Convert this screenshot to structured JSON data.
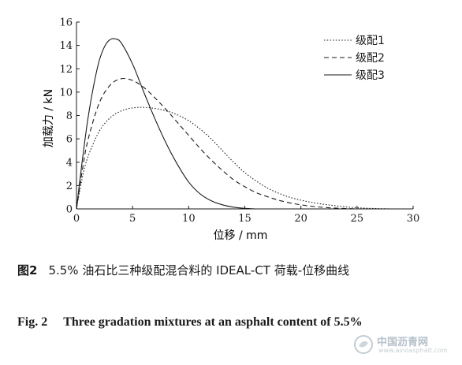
{
  "chart_data": {
    "type": "line",
    "xlabel": "位移 / mm",
    "ylabel": "加载力 / kN",
    "xlim": [
      0,
      30
    ],
    "ylim": [
      0,
      16
    ],
    "xticks": [
      0,
      5,
      10,
      15,
      20,
      25,
      30
    ],
    "yticks": [
      0,
      2,
      4,
      6,
      8,
      10,
      12,
      14,
      16
    ],
    "legend_position": "top-right",
    "grid": false,
    "series": [
      {
        "name": "级配1",
        "style": "dotted",
        "x": [
          0,
          0.5,
          1,
          2,
          3,
          4,
          5,
          6,
          7,
          8,
          9,
          10,
          11,
          12,
          13,
          14,
          15,
          16,
          17,
          18,
          19,
          20,
          21,
          22,
          23,
          24,
          25,
          26,
          27,
          28
        ],
        "y": [
          0,
          2.6,
          4.4,
          6.6,
          7.8,
          8.4,
          8.65,
          8.7,
          8.6,
          8.4,
          8.05,
          7.55,
          6.85,
          6.0,
          5.0,
          4.0,
          3.1,
          2.4,
          1.8,
          1.35,
          1.0,
          0.75,
          0.55,
          0.4,
          0.28,
          0.18,
          0.1,
          0.05,
          0.02,
          0
        ]
      },
      {
        "name": "级配2",
        "style": "dashed",
        "x": [
          0,
          0.5,
          1,
          2,
          3,
          4,
          5,
          6,
          7,
          8,
          9,
          10,
          11,
          12,
          13,
          14,
          15,
          16,
          17,
          18,
          19,
          20,
          21,
          22,
          23,
          24,
          25
        ],
        "y": [
          0,
          3.2,
          5.8,
          9.0,
          10.6,
          11.15,
          11.0,
          10.4,
          9.5,
          8.5,
          7.4,
          6.3,
          5.2,
          4.2,
          3.3,
          2.5,
          1.9,
          1.4,
          1.05,
          0.75,
          0.52,
          0.35,
          0.22,
          0.13,
          0.07,
          0.03,
          0
        ]
      },
      {
        "name": "级配3",
        "style": "solid",
        "x": [
          0,
          0.5,
          1,
          1.5,
          2,
          2.5,
          3,
          3.5,
          4,
          5,
          6,
          7,
          8,
          9,
          10,
          11,
          12,
          13,
          14,
          15,
          16
        ],
        "y": [
          0,
          4.0,
          7.6,
          10.4,
          12.6,
          13.9,
          14.5,
          14.55,
          14.2,
          12.4,
          10.0,
          7.7,
          5.6,
          3.8,
          2.3,
          1.3,
          0.7,
          0.35,
          0.15,
          0.05,
          0
        ]
      }
    ]
  },
  "caption": {
    "zh_label": "图2",
    "zh_text": "5.5% 油石比三种级配混合料的 IDEAL-CT 荷载-位移曲线",
    "en_label": "Fig. 2",
    "en_text": "Three gradation mixtures at an asphalt content of 5.5%"
  },
  "watermark": {
    "cn": "中国沥青网",
    "en": "www.ainoasphalt.com"
  },
  "colors": {
    "line": "#1a1a1a",
    "axis": "#1a1a1a",
    "watermark": "#7a8e9c"
  }
}
